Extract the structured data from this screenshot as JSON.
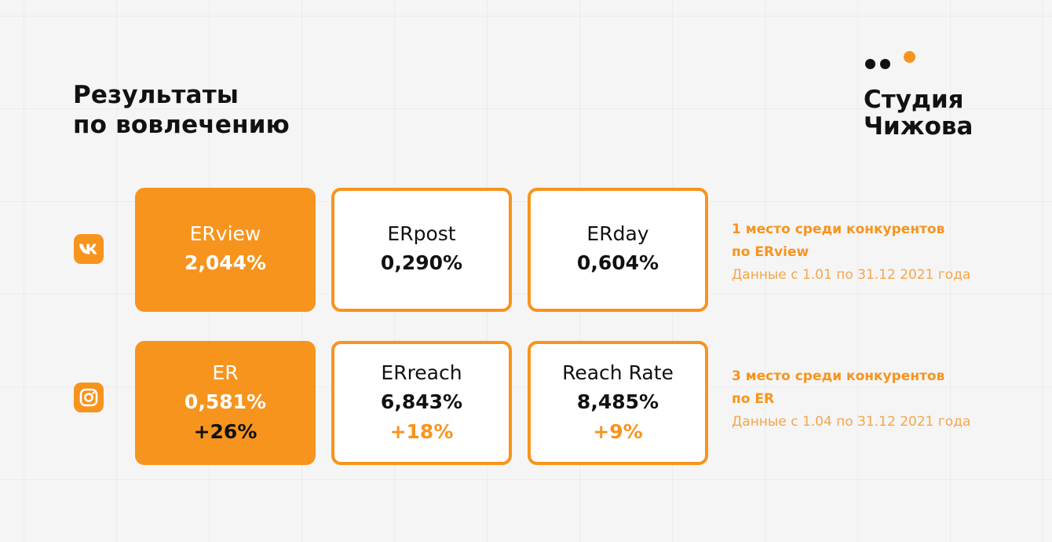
{
  "title": {
    "line1": "Результаты",
    "line2": "по вовлечению"
  },
  "logo": {
    "line1": "Студия",
    "line2": "Чижова"
  },
  "colors": {
    "accent": "#f7941d",
    "text": "#111111",
    "background": "#f5f5f5"
  },
  "rows": [
    {
      "icon": "vk-icon",
      "cards": [
        {
          "label": "ERview",
          "value": "2,044%",
          "style": "filled"
        },
        {
          "label": "ERpost",
          "value": "0,290%",
          "style": "outlined"
        },
        {
          "label": "ERday",
          "value": "0,604%",
          "style": "outlined"
        }
      ],
      "note": {
        "line1": "1 место среди конкурентов",
        "line2": "по ERview",
        "line3": "Данные с 1.01 по 31.12 2021 года"
      }
    },
    {
      "icon": "instagram-icon",
      "cards": [
        {
          "label": "ER",
          "value": "0,581%",
          "delta": "+26%",
          "style": "filled"
        },
        {
          "label": "ERreach",
          "value": "6,843%",
          "delta": "+18%",
          "style": "outlined"
        },
        {
          "label": "Reach Rate",
          "value": "8,485%",
          "delta": "+9%",
          "style": "outlined"
        }
      ],
      "note": {
        "line1": "3 место среди конкурентов",
        "line2": "по ER",
        "line3": "Данные с 1.04 по 31.12 2021 года"
      }
    }
  ]
}
